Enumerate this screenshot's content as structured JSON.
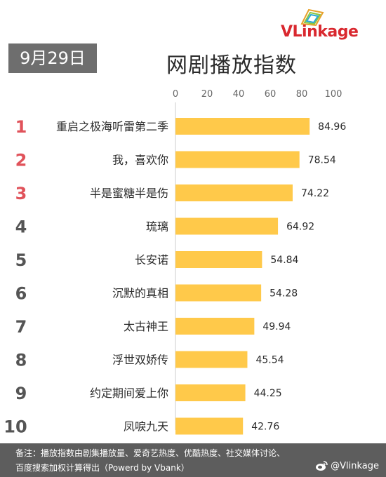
{
  "brand": {
    "logo_text": "VLinkage"
  },
  "header": {
    "date": "9月29日",
    "title": "网剧播放指数"
  },
  "chart_data": {
    "type": "bar",
    "orientation": "horizontal",
    "title": "网剧播放指数",
    "xlim": [
      0,
      100
    ],
    "xticks": [
      0,
      20,
      40,
      60,
      80,
      100
    ],
    "ranks": [
      1,
      2,
      3,
      4,
      5,
      6,
      7,
      8,
      9,
      10
    ],
    "categories": [
      "重启之极海听雷第二季",
      "我，喜欢你",
      "半是蜜糖半是伤",
      "琉璃",
      "长安诺",
      "沉默的真相",
      "太古神王",
      "浮世双娇传",
      "约定期间爱上你",
      "凤唳九天"
    ],
    "values": [
      84.96,
      78.54,
      74.22,
      64.92,
      54.84,
      54.28,
      49.94,
      45.54,
      44.25,
      42.76
    ],
    "bar_color": "#ffc94a",
    "top_rank_color": "#e0525a",
    "rank_color": "#555555",
    "grid": false,
    "legend": "none"
  },
  "footer": {
    "note_line1": "备注：播放指数由剧集播放量、爱奇艺热度、优酷热度、社交媒体讨论、",
    "note_line2": "百度搜索加权计算得出（Powerd by Vbank）",
    "weibo_handle": "@Vlinkage",
    "weibo_icon": "weibo-icon"
  }
}
